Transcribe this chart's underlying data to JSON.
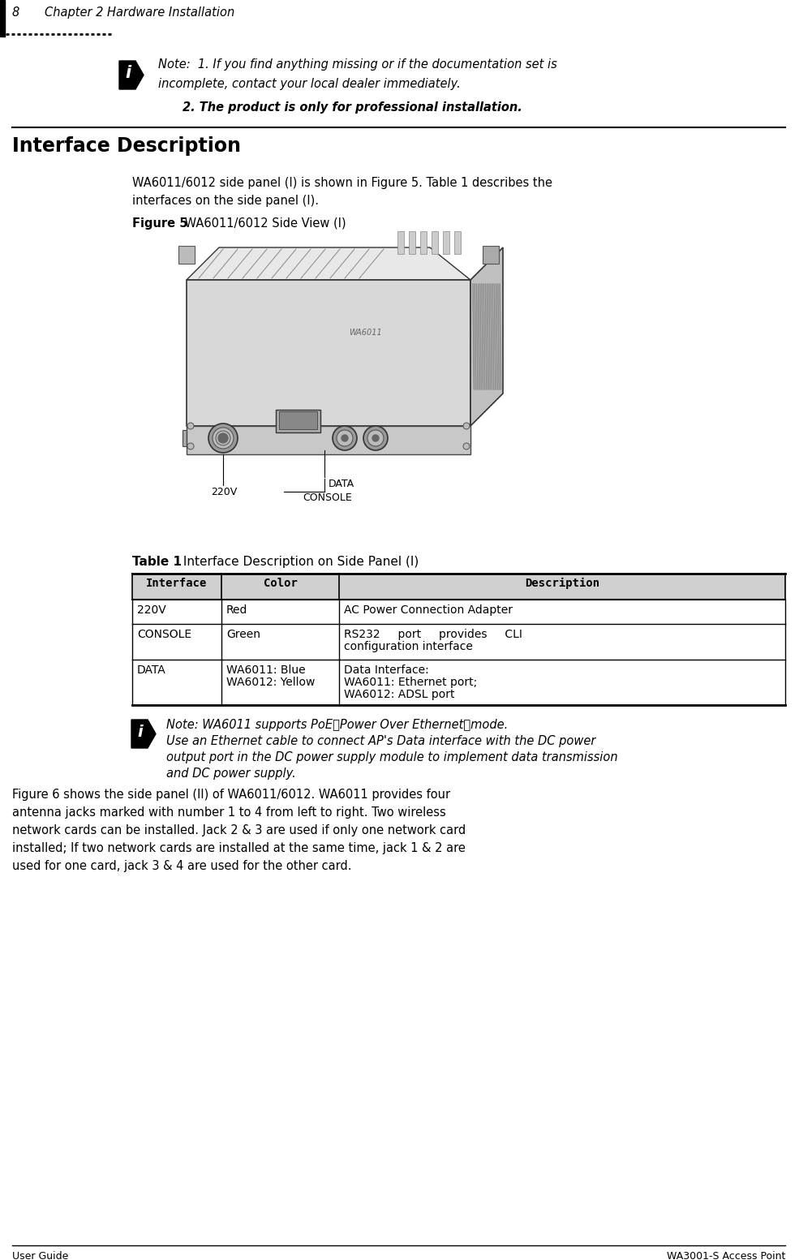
{
  "page_number": "8",
  "chapter_title": "Chapter 2 Hardware Installation",
  "footer_left": "User Guide",
  "footer_right": "WA3001-S Access Point",
  "note1_bold": "Note:",
  "note1_line1": "  1. If you find anything missing or if the documentation set is",
  "note1_line2": "incomplete, contact your local dealer immediately.",
  "note1_line3": "2. The product is only for professional installation.",
  "section_title": "Interface Description",
  "body1_line1": "WA6011/6012 side panel (I) is shown in Figure 5. Table 1 describes the",
  "body1_line2": "interfaces on the side panel (I).",
  "fig5_bold": "Figure 5",
  "fig5_rest": " WA6011/6012 Side View (I)",
  "label_220v": "220V",
  "label_data": "DATA",
  "label_console": "CONSOLE",
  "table_bold": "Table 1",
  "table_rest": " Interface Description on Side Panel (I)",
  "table_headers": [
    "Interface",
    "Color",
    "Description"
  ],
  "table_row1": [
    "220V",
    "Red",
    "AC Power Connection Adapter"
  ],
  "table_row2_c0": "CONSOLE",
  "table_row2_c1": "Green",
  "table_row2_c2a": "RS232     port     provides     CLI",
  "table_row2_c2b": "configuration interface",
  "table_row3_c0": "DATA",
  "table_row3_c1a": "WA6011: Blue",
  "table_row3_c1b": "WA6012: Yellow",
  "table_row3_c2a": "Data Interface:",
  "table_row3_c2b": "WA6011: Ethernet port;",
  "table_row3_c2c": "WA6012: ADSL port",
  "note2_bold": "Note:",
  "note2_line1": " WA6011 supports PoE（Power Over Ethernet）mode.",
  "note2_line2": "Use an Ethernet cable to connect AP's Data interface with the DC power",
  "note2_line3": "output port in the DC power supply module to implement data transmission",
  "note2_line4": "and DC power supply.",
  "body2_line1": "Figure 6 shows the side panel (II) of WA6011/6012. WA6011 provides four",
  "body2_line2": "antenna jacks marked with number 1 to 4 from left to right. Two wireless",
  "body2_line3": "network cards can be installed. Jack 2 & 3 are used if only one network card",
  "body2_line4": "installed; If two network cards are installed at the same time, jack 1 & 2 are",
  "body2_line5": "used for one card, jack 3 & 4 are used for the other card.",
  "bg_color": "#ffffff"
}
